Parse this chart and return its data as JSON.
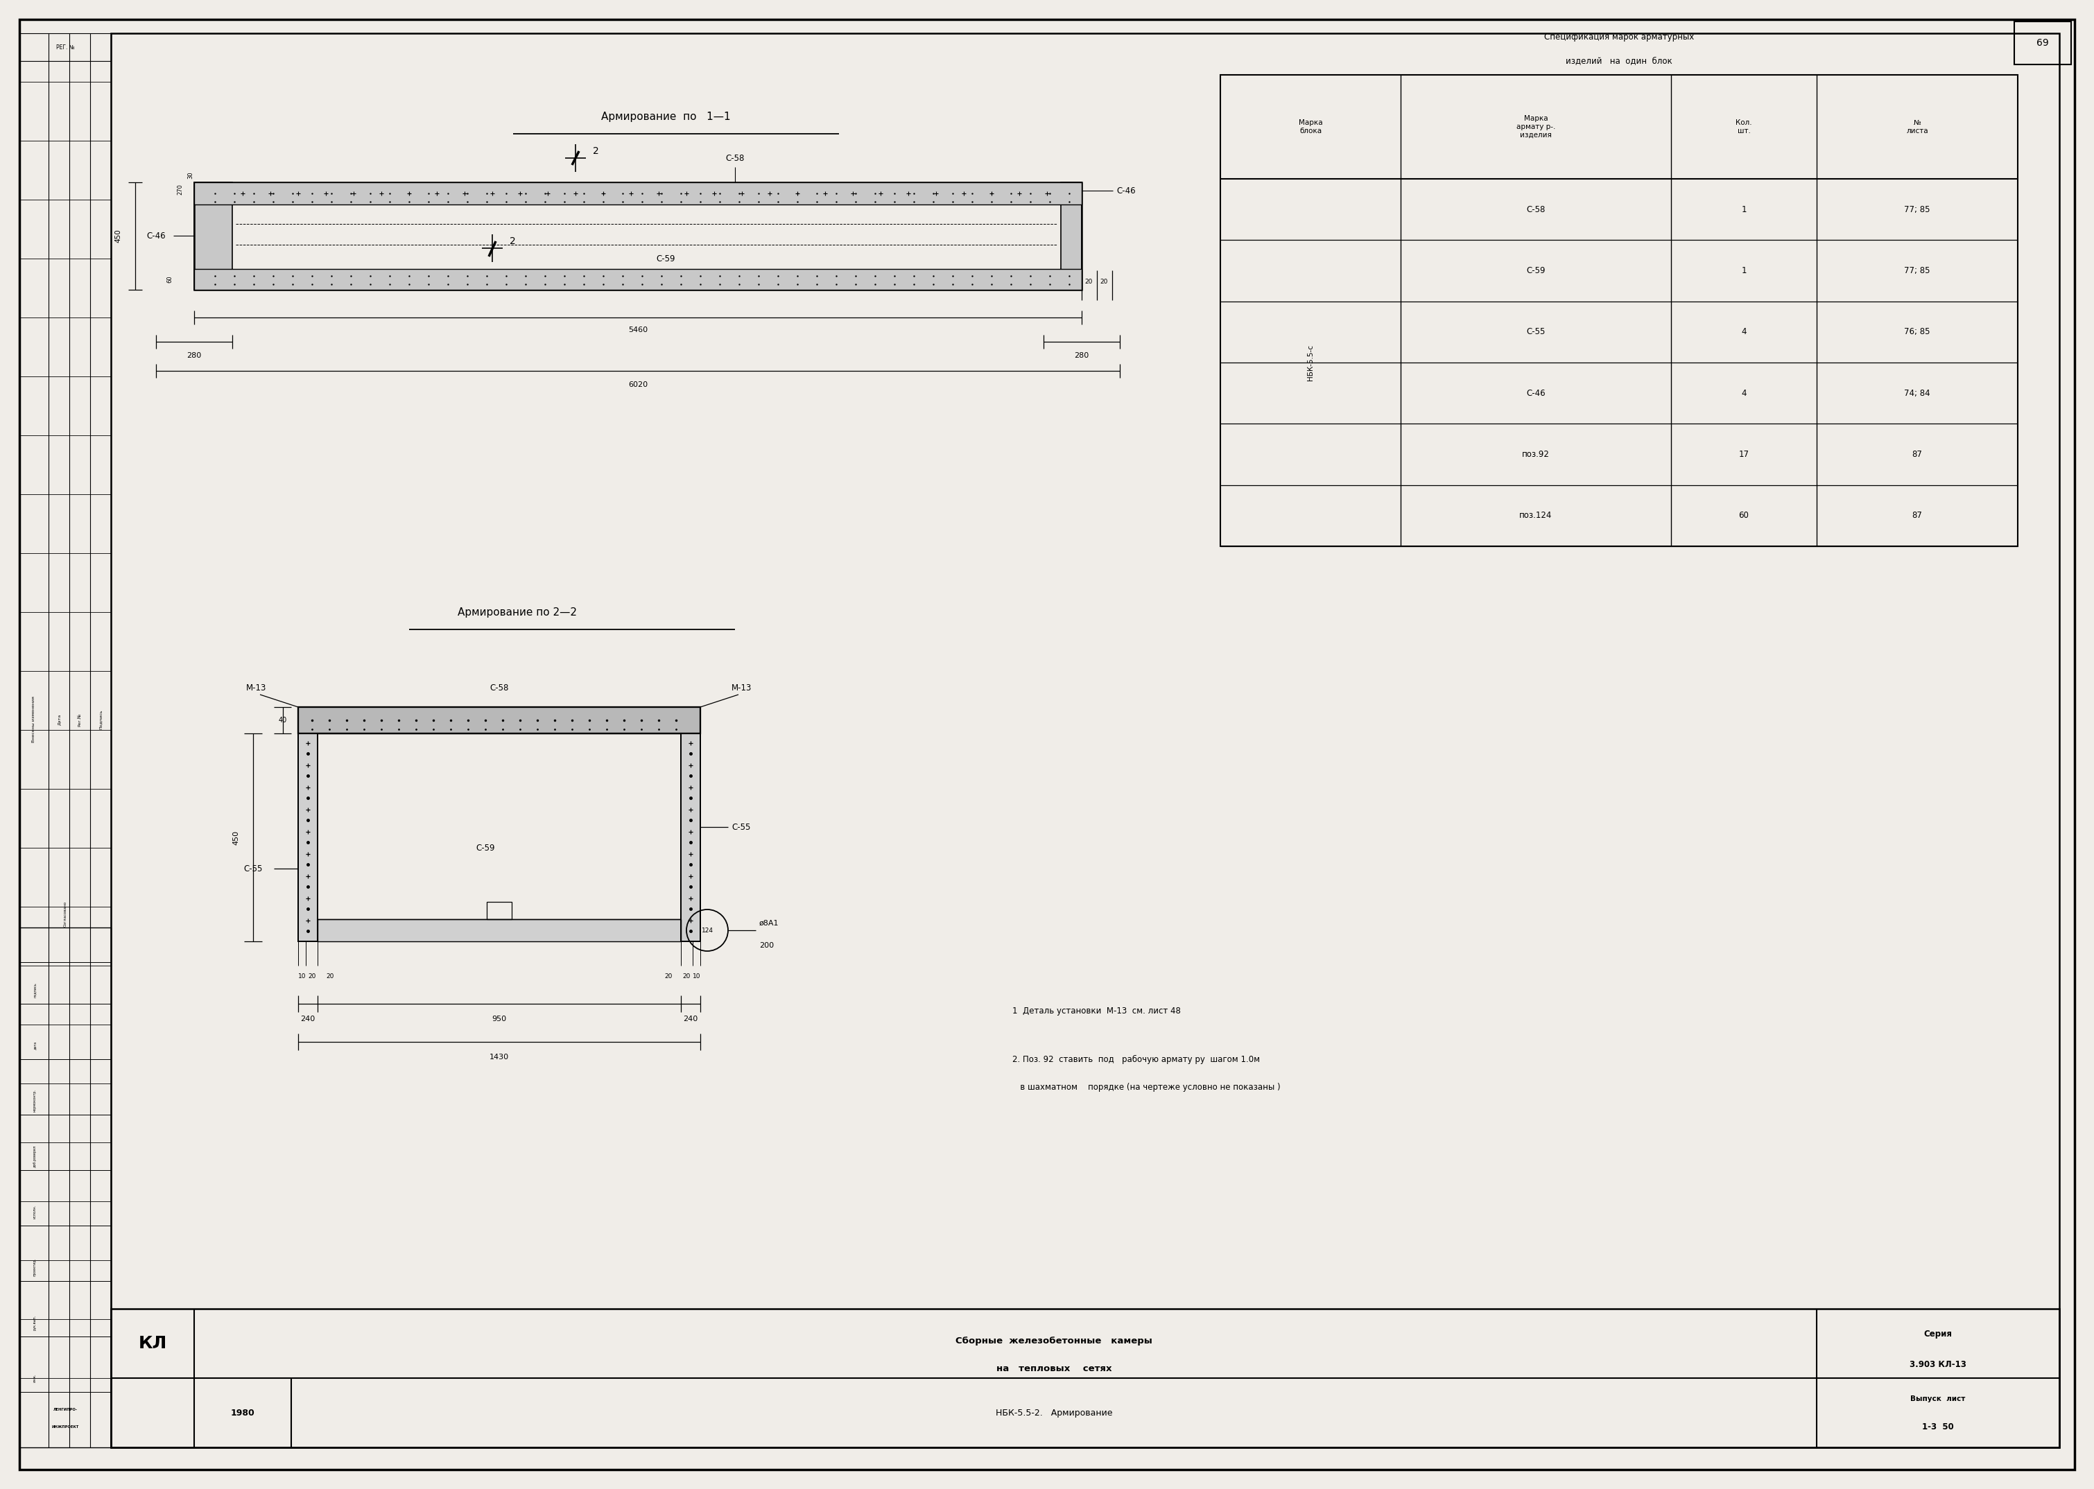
{
  "bg_color": "#f0ede8",
  "line_color": "#000000",
  "page_width": 30.0,
  "page_height": 21.28,
  "title_top_view": "Армирование  по   1—1",
  "title_side_view": "Армирование по 2—2",
  "spec_title": "Спецификация марок арматурных",
  "spec_title2": "изделий   на  один  блок",
  "spec_col_headers": [
    "Марка\nблока",
    "Марка\nармату р-.\nизделия",
    "Кол.\nшт.",
    "№\nлиста"
  ],
  "spec_rows": [
    [
      "",
      "С-58",
      "1",
      "77; 85"
    ],
    [
      "",
      "С-59",
      "1",
      "77; 85"
    ],
    [
      "",
      "С-55",
      "4",
      "76; 85"
    ],
    [
      "",
      "С-46",
      "4",
      "74; 84"
    ],
    [
      "",
      "поз.92",
      "17",
      "87"
    ],
    [
      "",
      "поз.124",
      "60",
      "87"
    ]
  ],
  "nbs_label": "НБК-5.5-с",
  "note1": "1  Деталь установки  М-13  см. лист 48",
  "note2": "2. Поз. 92  ставить  под   рабочую армату ру  шагом 1.0м",
  "note2b": "   в шахматном    порядке (на чертеже условно не показаны )",
  "footer_kl": "КЛ",
  "footer_title1": "Сборные  железобетонные   камеры",
  "footer_title2": "на   тепловых    сетях",
  "footer_series_label": "Серия",
  "footer_series_val": "3.903 КЛ-13",
  "footer_year": "1980",
  "footer_doc": "НБК-5.5-2.   Армирование",
  "footer_vypusk_label": "Выпуск  лист",
  "footer_vypusk_val": "1-3  50",
  "page_num": "69"
}
